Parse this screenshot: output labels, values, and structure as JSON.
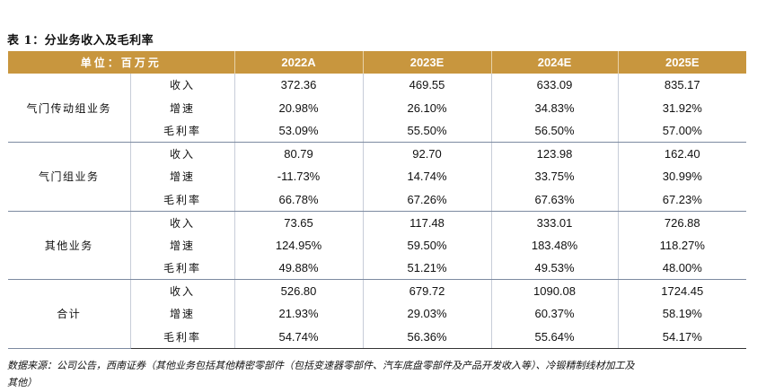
{
  "title": "表 1：分业务收入及毛利率",
  "header": {
    "unit": "单位：百万元",
    "years": [
      "2022A",
      "2023E",
      "2024E",
      "2025E"
    ]
  },
  "groups": [
    {
      "name": "气门传动组业务",
      "rows": [
        {
          "metric": "收入",
          "values": [
            "372.36",
            "469.55",
            "633.09",
            "835.17"
          ]
        },
        {
          "metric": "增速",
          "values": [
            "20.98%",
            "26.10%",
            "34.83%",
            "31.92%"
          ]
        },
        {
          "metric": "毛利率",
          "values": [
            "53.09%",
            "55.50%",
            "56.50%",
            "57.00%"
          ]
        }
      ]
    },
    {
      "name": "气门组业务",
      "rows": [
        {
          "metric": "收入",
          "values": [
            "80.79",
            "92.70",
            "123.98",
            "162.40"
          ]
        },
        {
          "metric": "增速",
          "values": [
            "-11.73%",
            "14.74%",
            "33.75%",
            "30.99%"
          ]
        },
        {
          "metric": "毛利率",
          "values": [
            "66.78%",
            "67.26%",
            "67.63%",
            "67.23%"
          ]
        }
      ]
    },
    {
      "name": "其他业务",
      "rows": [
        {
          "metric": "收入",
          "values": [
            "73.65",
            "117.48",
            "333.01",
            "726.88"
          ]
        },
        {
          "metric": "增速",
          "values": [
            "124.95%",
            "59.50%",
            "183.48%",
            "118.27%"
          ]
        },
        {
          "metric": "毛利率",
          "values": [
            "49.88%",
            "51.21%",
            "49.53%",
            "48.00%"
          ]
        }
      ]
    },
    {
      "name": "合计",
      "rows": [
        {
          "metric": "收入",
          "values": [
            "526.80",
            "679.72",
            "1090.08",
            "1724.45"
          ]
        },
        {
          "metric": "增速",
          "values": [
            "21.93%",
            "29.03%",
            "60.37%",
            "58.19%"
          ]
        },
        {
          "metric": "毛利率",
          "values": [
            "54.74%",
            "56.36%",
            "55.64%",
            "54.17%"
          ]
        }
      ]
    }
  ],
  "source_note": "数据来源：公司公告，西南证券（其他业务包括其他精密零部件（包括变速器零部件、汽车底盘零部件及产品开发收入等）、冷锻精制线材加工及",
  "source_note_cont": "其他）"
}
